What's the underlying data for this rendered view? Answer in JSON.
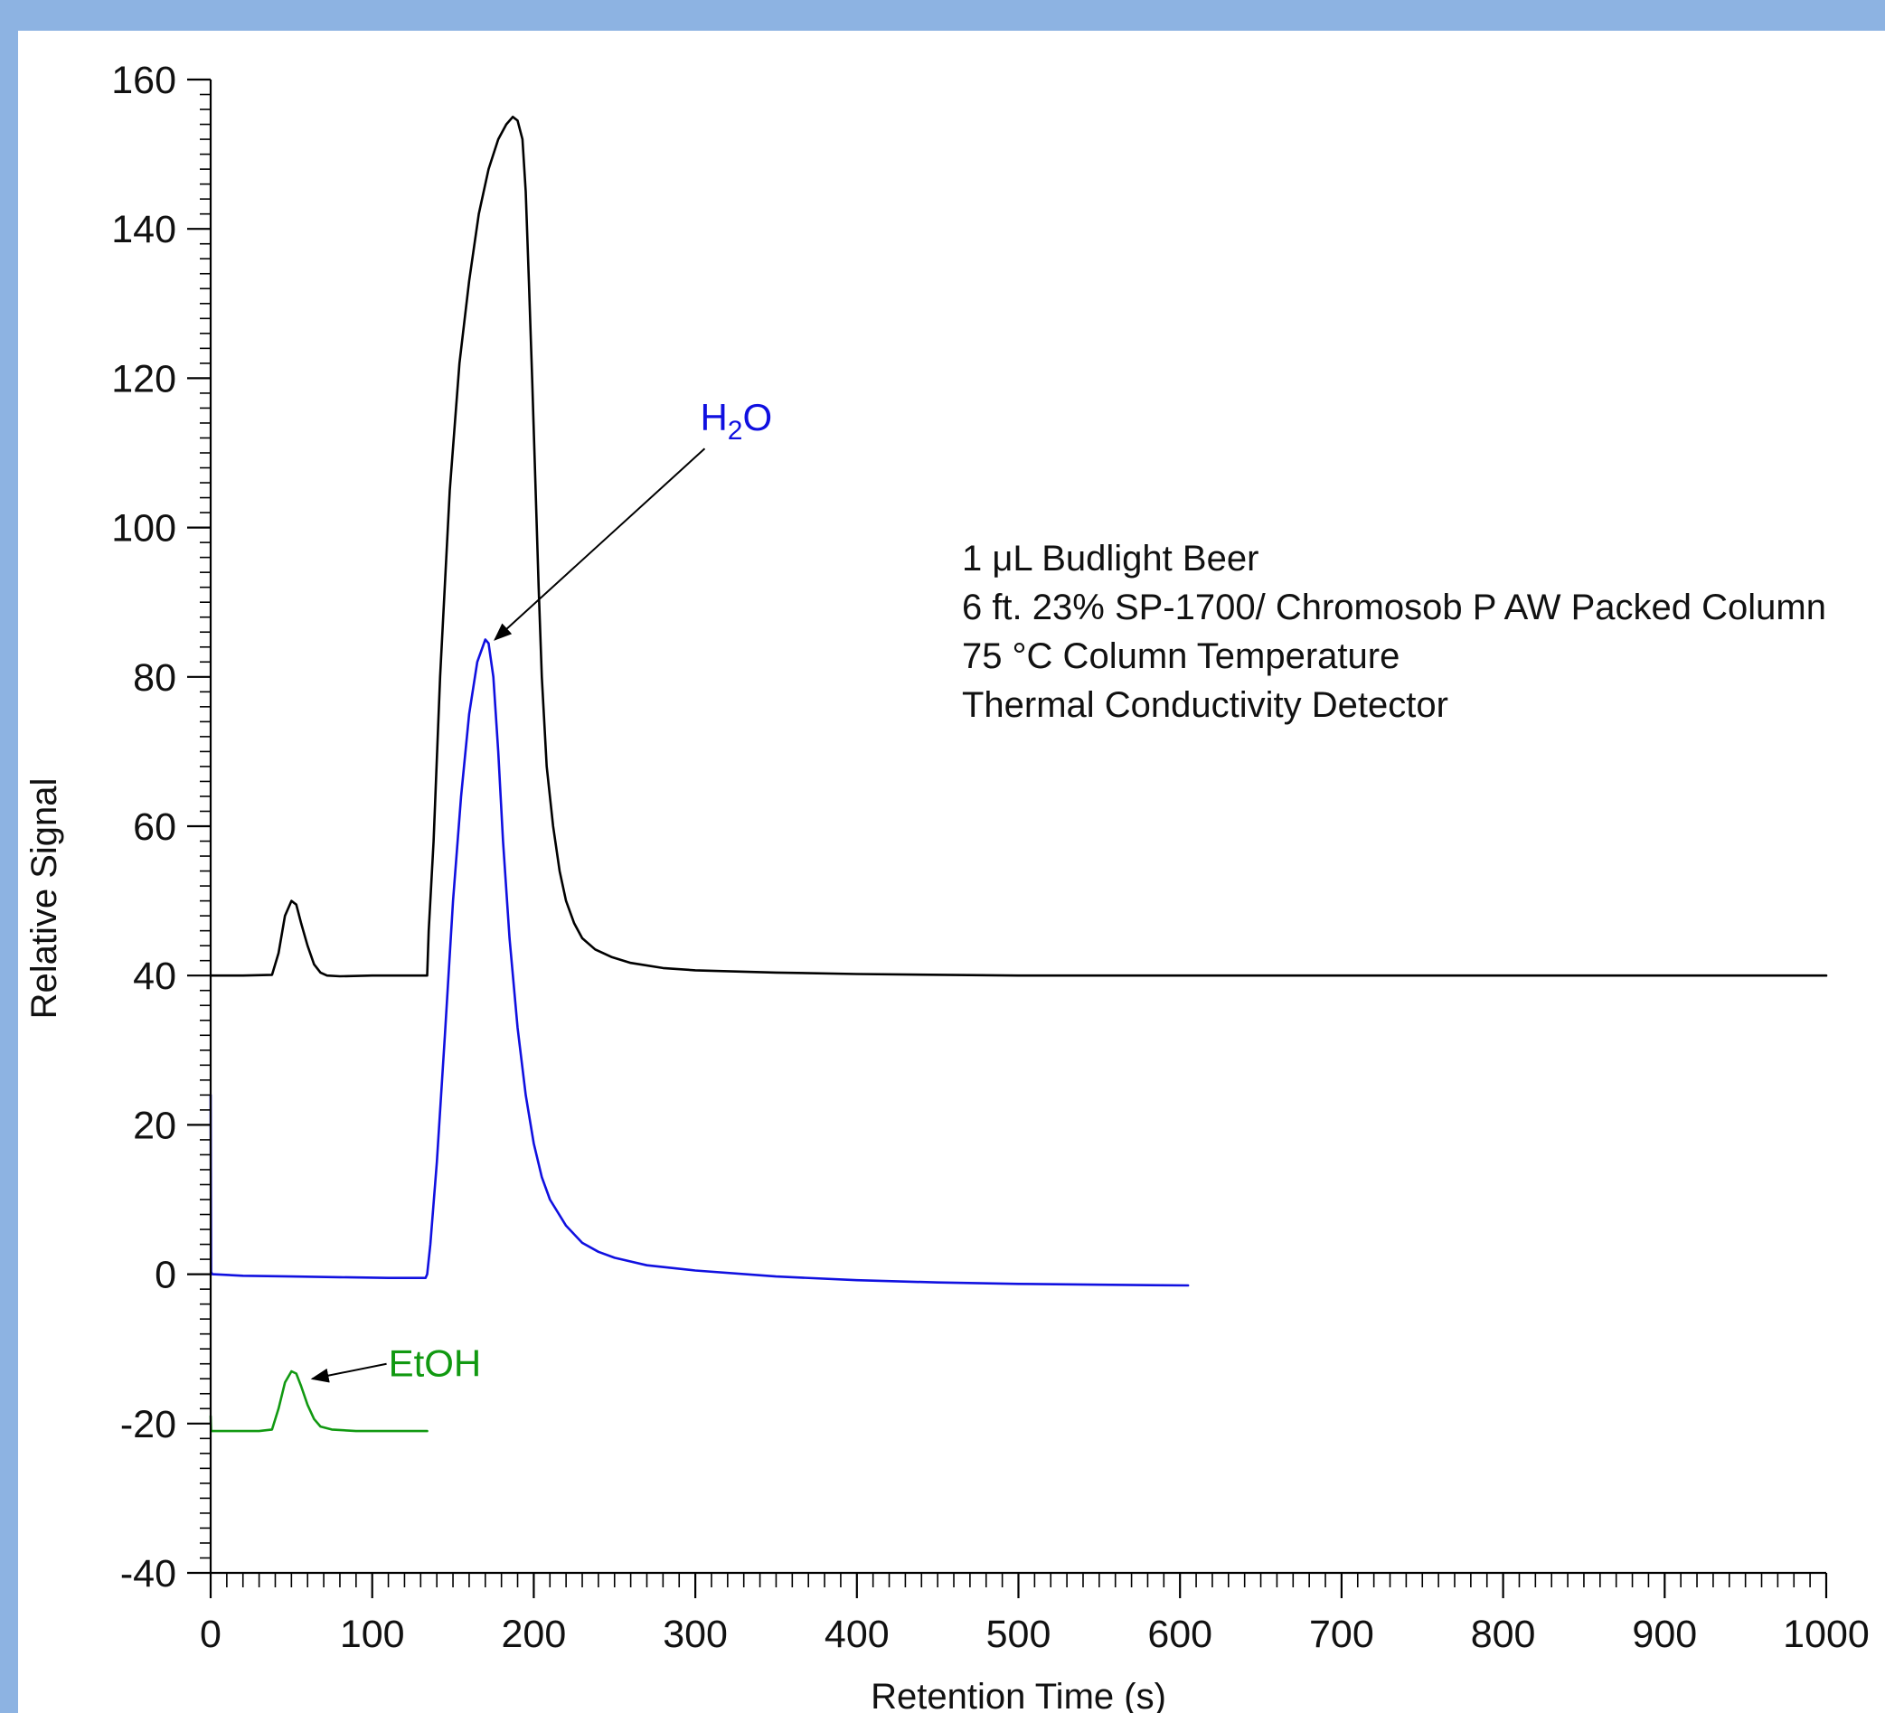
{
  "colors": {
    "frame": "#8db3e2",
    "panel": "#ffffff",
    "axis": "#000000"
  },
  "chart_data": {
    "type": "line",
    "xlabel": "Retention Time (s)",
    "ylabel": "Relative Signal",
    "xlim": [
      0,
      1000
    ],
    "ylim": [
      -40,
      160
    ],
    "x_ticks": [
      0,
      100,
      200,
      300,
      400,
      500,
      600,
      700,
      800,
      900,
      1000
    ],
    "y_ticks": [
      160,
      140,
      120,
      100,
      80,
      60,
      40,
      20,
      0,
      -20,
      -40
    ],
    "grid": false,
    "annotations": {
      "lines": [
        "1 μL Budlight Beer",
        "6 ft. 23% SP-1700/ Chromosob P AW Packed Column",
        "75 °C Column Temperature",
        "Thermal Conductivity Detector"
      ],
      "peak_labels": [
        {
          "base": "H",
          "sub": "2",
          "tail": "O",
          "color": "#1010e0",
          "text_at": [
            303,
            113
          ],
          "arrow_to": [
            176,
            85
          ]
        },
        {
          "text": "EtOH",
          "color": "#119911",
          "text_at": [
            110,
            -12
          ],
          "arrow_to": [
            63,
            -14
          ]
        }
      ]
    },
    "series": [
      {
        "color": "#000000",
        "x": [
          0,
          20,
          38,
          42,
          46,
          50,
          53,
          56,
          60,
          64,
          68,
          72,
          80,
          100,
          120,
          134,
          135,
          138,
          142,
          148,
          154,
          160,
          166,
          172,
          178,
          183,
          187,
          190,
          193,
          195,
          197,
          199,
          201,
          203,
          205,
          208,
          212,
          216,
          220,
          225,
          230,
          238,
          248,
          260,
          280,
          300,
          350,
          400,
          500,
          600,
          700,
          800,
          900,
          1000
        ],
        "y": [
          40,
          40,
          40.1,
          43,
          48,
          50,
          49.5,
          47,
          44,
          41.5,
          40.4,
          40,
          39.9,
          40,
          40,
          40,
          46,
          58,
          80,
          105,
          122,
          133,
          142,
          148,
          152,
          154,
          155,
          154.5,
          152,
          145,
          133,
          120,
          106,
          92,
          80,
          68,
          60,
          54,
          50,
          47,
          45,
          43.5,
          42.5,
          41.7,
          41,
          40.7,
          40.4,
          40.2,
          40,
          40,
          40,
          40,
          40,
          40
        ]
      },
      {
        "color": "#1010e0",
        "x": [
          0,
          0.3,
          1,
          20,
          50,
          80,
          110,
          133,
          134,
          136,
          140,
          145,
          150,
          155,
          160,
          165,
          170,
          172,
          175,
          178,
          181,
          185,
          190,
          195,
          200,
          205,
          210,
          220,
          230,
          240,
          250,
          270,
          300,
          350,
          400,
          450,
          500,
          550,
          605
        ],
        "y": [
          24,
          0.3,
          0,
          -0.2,
          -0.3,
          -0.4,
          -0.5,
          -0.5,
          0,
          4,
          15,
          32,
          50,
          64,
          75,
          82,
          85,
          84.5,
          80,
          70,
          58,
          45,
          33,
          24,
          17.5,
          13,
          10,
          6.5,
          4.2,
          3,
          2.2,
          1.2,
          0.5,
          -0.3,
          -0.8,
          -1.1,
          -1.3,
          -1.4,
          -1.5
        ]
      },
      {
        "color": "#119911",
        "x": [
          0,
          0.3,
          1,
          30,
          38,
          42,
          46,
          50,
          53,
          56,
          60,
          64,
          68,
          75,
          90,
          110,
          134
        ],
        "y": [
          -19,
          -21,
          -21,
          -21,
          -20.8,
          -18,
          -14.5,
          -13,
          -13.3,
          -15,
          -17.5,
          -19.4,
          -20.4,
          -20.8,
          -21,
          -21,
          -21
        ]
      }
    ]
  }
}
